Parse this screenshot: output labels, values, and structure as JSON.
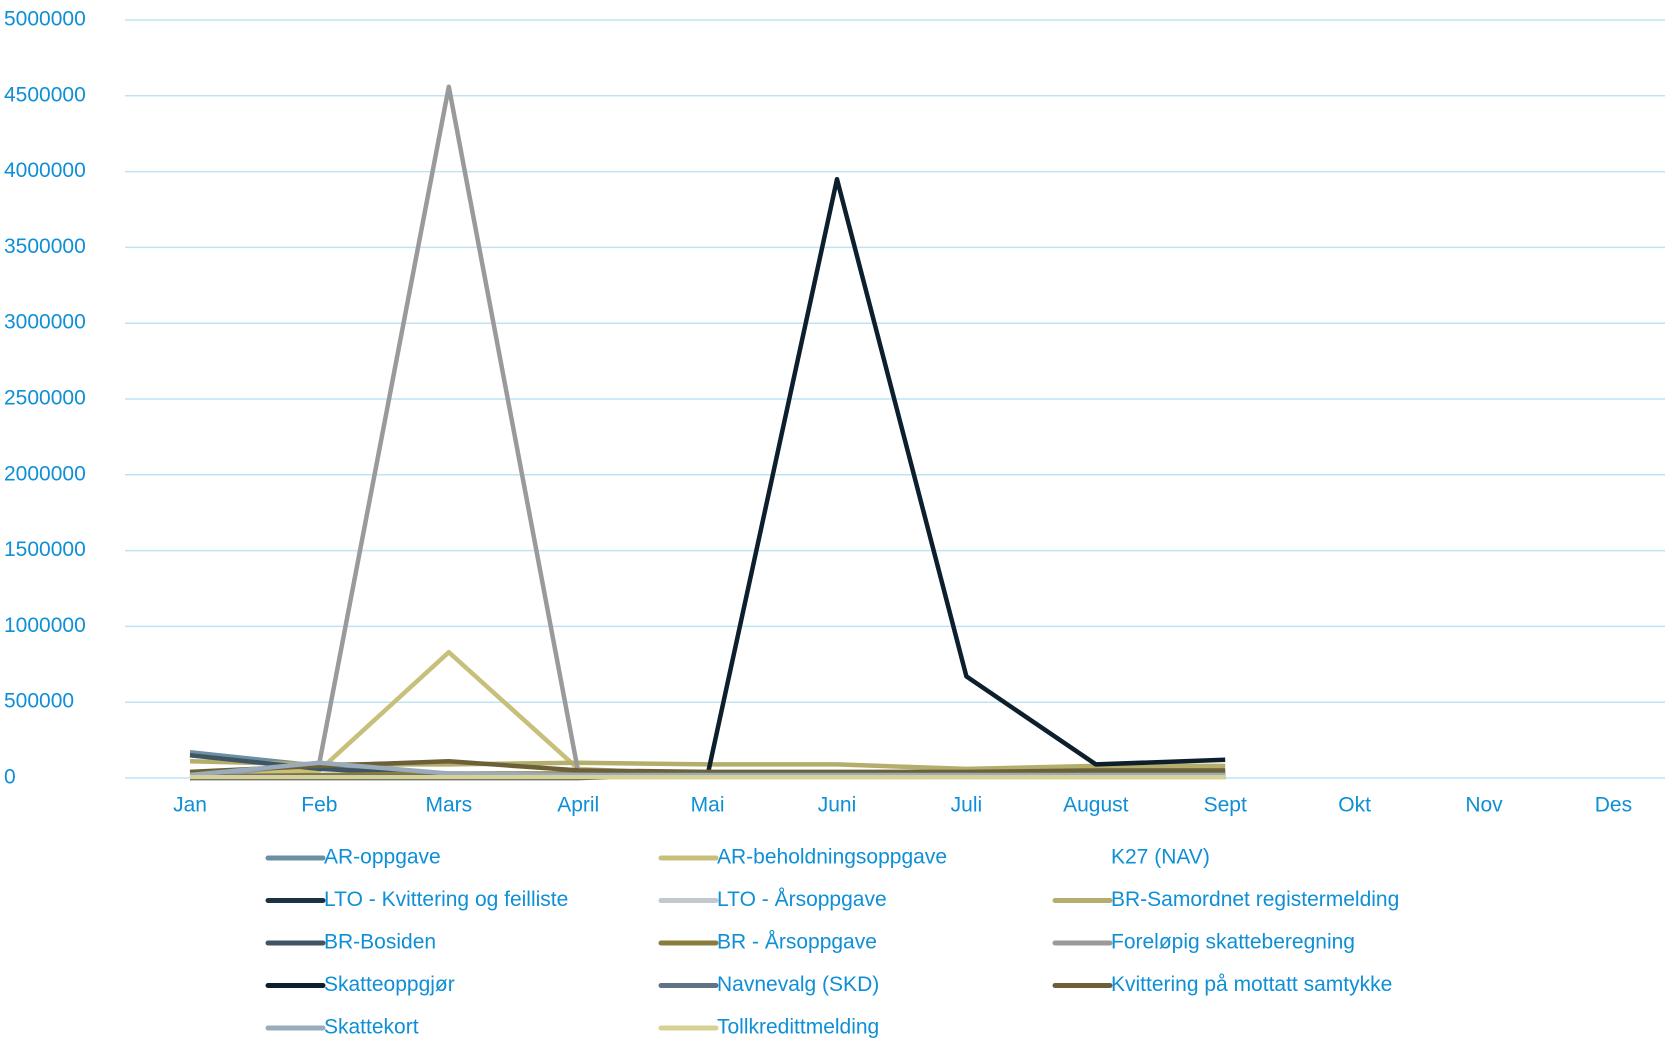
{
  "chart_data": {
    "type": "line",
    "categories": [
      "Jan",
      "Feb",
      "Mars",
      "April",
      "Mai",
      "Juni",
      "Juli",
      "August",
      "Sept",
      "Okt",
      "Nov",
      "Des"
    ],
    "ylim": [
      0,
      5000000
    ],
    "yticks": [
      0,
      500000,
      1000000,
      1500000,
      2000000,
      2500000,
      3000000,
      3500000,
      4000000,
      4500000,
      5000000
    ],
    "grid": true,
    "series": [
      {
        "name": "AR-oppgave",
        "color": "#6d8fa3",
        "values": [
          170000,
          80000,
          20000,
          10000,
          10000,
          10000,
          10000,
          10000,
          10000,
          null,
          null,
          null
        ]
      },
      {
        "name": "AR-beholdningsoppgave",
        "color": "#c8bf7a",
        "values": [
          20000,
          50000,
          830000,
          60000,
          20000,
          20000,
          20000,
          20000,
          20000,
          null,
          null,
          null
        ]
      },
      {
        "name": "K27 (NAV)",
        "values": [
          null,
          null,
          null,
          null,
          null,
          null,
          null,
          null,
          null,
          null,
          null,
          null
        ]
      },
      {
        "name": "LTO - Kvittering og feilliste",
        "color": "#1a3344",
        "values": [
          10000,
          10000,
          10000,
          10000,
          10000,
          10000,
          10000,
          10000,
          10000,
          null,
          null,
          null
        ]
      },
      {
        "name": "LTO - Årsoppgave",
        "color": "#c0c8d0",
        "values": [
          5000,
          5000,
          5000,
          5000,
          5000,
          5000,
          5000,
          5000,
          5000,
          null,
          null,
          null
        ]
      },
      {
        "name": "BR-Samordnet registermelding",
        "color": "#b5ad6b",
        "values": [
          110000,
          90000,
          90000,
          100000,
          90000,
          90000,
          60000,
          80000,
          80000,
          null,
          null,
          null
        ]
      },
      {
        "name": "BR-Bosiden",
        "color": "#3f5563",
        "values": [
          150000,
          60000,
          20000,
          20000,
          20000,
          20000,
          20000,
          20000,
          20000,
          null,
          null,
          null
        ]
      },
      {
        "name": "BR - Årsoppgave",
        "color": "#8a7d3c",
        "values": [
          10000,
          20000,
          30000,
          30000,
          30000,
          30000,
          30000,
          40000,
          40000,
          null,
          null,
          null
        ]
      },
      {
        "name": "Foreløpig skatteberegning",
        "color": "#9a9a9a",
        "values": [
          0,
          100000,
          4560000,
          40000,
          10000,
          5000,
          5000,
          5000,
          5000,
          null,
          null,
          null
        ]
      },
      {
        "name": "Skatteoppgjør",
        "color": "#0d1f2d",
        "values": [
          0,
          0,
          0,
          0,
          20000,
          3950000,
          670000,
          90000,
          120000,
          null,
          null,
          null
        ]
      },
      {
        "name": "Navnevalg (SKD)",
        "color": "#5f7384",
        "values": [
          10000,
          10000,
          10000,
          10000,
          10000,
          10000,
          10000,
          10000,
          10000,
          null,
          null,
          null
        ]
      },
      {
        "name": "Kvittering på mottatt samtykke",
        "color": "#6b6038",
        "values": [
          40000,
          80000,
          110000,
          50000,
          40000,
          40000,
          40000,
          50000,
          50000,
          null,
          null,
          null
        ]
      },
      {
        "name": "Skattekort",
        "color": "#9aabbb",
        "values": [
          20000,
          100000,
          30000,
          20000,
          20000,
          20000,
          20000,
          20000,
          20000,
          null,
          null,
          null
        ]
      },
      {
        "name": "Tollkredittmelding",
        "color": "#d8d195",
        "values": [
          5000,
          5000,
          5000,
          5000,
          5000,
          5000,
          5000,
          5000,
          5000,
          null,
          null,
          null
        ]
      }
    ]
  }
}
